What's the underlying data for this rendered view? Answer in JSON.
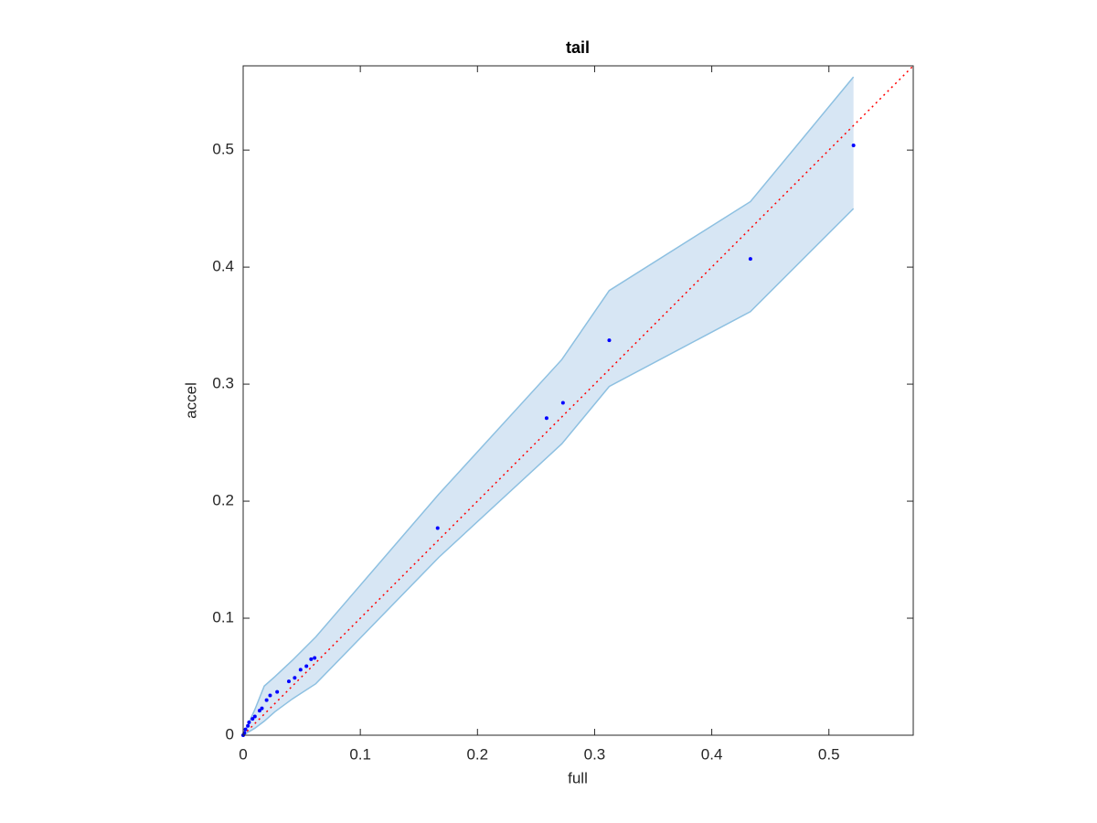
{
  "chart_data": {
    "type": "scatter",
    "title": "tail",
    "x_label": "full",
    "y_label": "accel",
    "xlim": [
      0,
      0.572
    ],
    "ylim": [
      0,
      0.572
    ],
    "xticks": [
      0,
      0.1,
      0.2,
      0.3,
      0.4,
      0.5
    ],
    "yticks": [
      0,
      0.1,
      0.2,
      0.3,
      0.4,
      0.5
    ],
    "points": {
      "color": "#0000ff",
      "x": [
        0.521,
        0.433,
        0.3125,
        0.273,
        0.259,
        0.166,
        0.061,
        0.058,
        0.054,
        0.049,
        0.044,
        0.039,
        0.029,
        0.023,
        0.02,
        0.016,
        0.014,
        0.01,
        0.008,
        0.005,
        0.004,
        0.002,
        0.001,
        0
      ],
      "y": [
        0.504,
        0.407,
        0.3375,
        0.284,
        0.271,
        0.177,
        0.066,
        0.065,
        0.059,
        0.056,
        0.049,
        0.046,
        0.037,
        0.034,
        0.03,
        0.023,
        0.021,
        0.016,
        0.014,
        0.011,
        0.008,
        0.005,
        0.002,
        0
      ]
    },
    "band": {
      "fill": "#d7e6f4",
      "edge": "#8dc0e1",
      "x": [
        0,
        0.01,
        0.018,
        0.027,
        0.042,
        0.062,
        0.167,
        0.272,
        0.3125,
        0.433,
        0.521
      ],
      "upper": [
        0,
        0.022,
        0.042,
        0.05,
        0.064,
        0.084,
        0.206,
        0.321,
        0.38,
        0.456,
        0.5625
      ],
      "lower": [
        0,
        0.006,
        0.012,
        0.02,
        0.031,
        0.044,
        0.152,
        0.249,
        0.298,
        0.362,
        0.45
      ]
    },
    "reference_line": {
      "color": "#ff0000",
      "x": [
        0,
        0.572
      ],
      "y": [
        0,
        0.572
      ]
    }
  }
}
